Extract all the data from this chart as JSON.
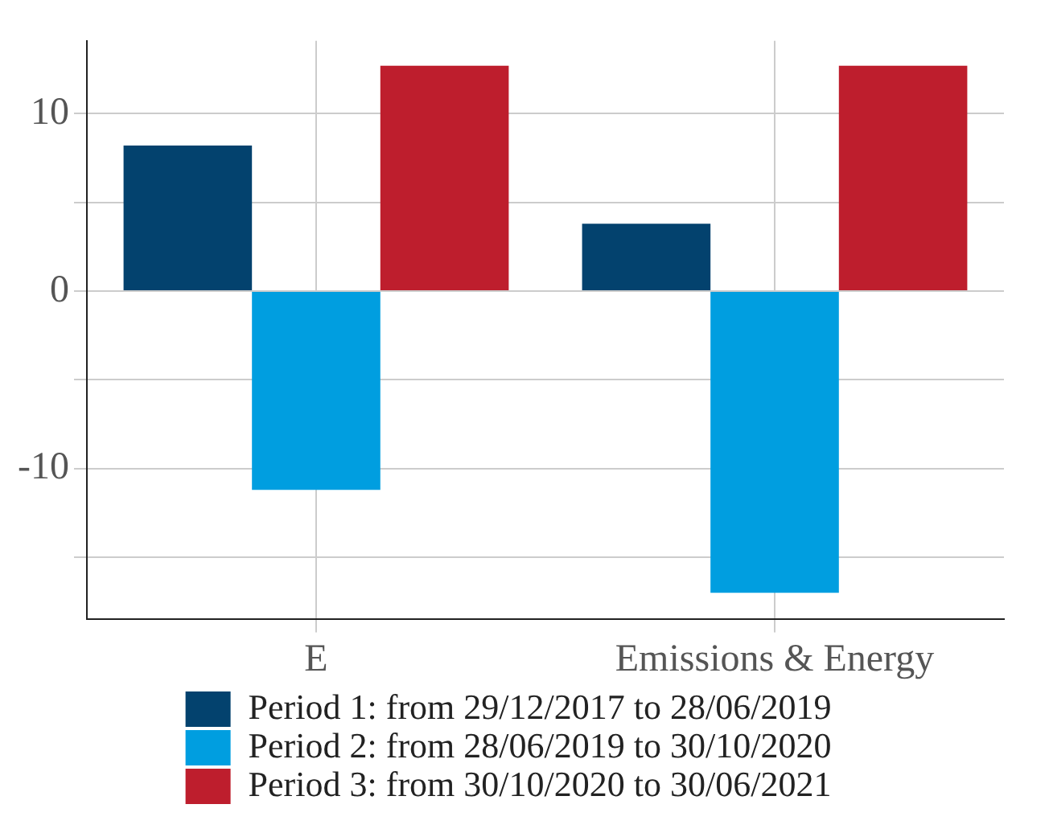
{
  "chart_data": {
    "type": "bar",
    "categories": [
      "E",
      "Emissions & Energy"
    ],
    "series": [
      {
        "name": "Period 1: from 29/12/2017 to 28/06/2019",
        "color": "#03426e",
        "values": [
          8.2,
          3.8
        ]
      },
      {
        "name": "Period 2: from 28/06/2019 to 30/10/2020",
        "color": "#009ee0",
        "values": [
          -11.2,
          -17.0
        ]
      },
      {
        "name": "Period 3: from 30/10/2020 to 30/06/2021",
        "color": "#be1e2d",
        "values": [
          12.7,
          12.7
        ]
      }
    ],
    "ylim": [
      -18.5,
      14.1
    ],
    "yticks": [
      {
        "value": -15,
        "label": null
      },
      -10,
      {
        "value": -5,
        "label": null
      },
      0,
      {
        "value": 5,
        "label": null
      },
      10
    ],
    "grid": true,
    "legend": "bottom"
  }
}
